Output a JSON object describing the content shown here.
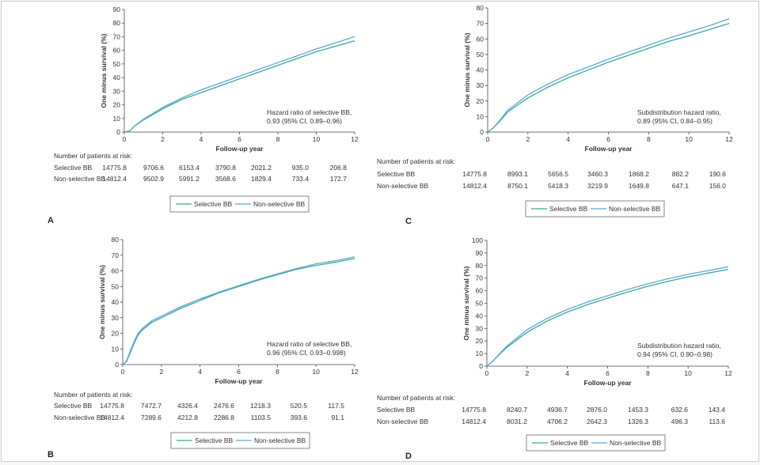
{
  "colors": {
    "selective": "#3aa79b",
    "non_selective": "#5aa9d6",
    "axis": "#444444",
    "text": "#333333"
  },
  "chart_data": [
    {
      "panel_label": "A",
      "type": "line",
      "xlabel": "Follow-up year",
      "ylabel": "One minus survival (%)",
      "xlim": [
        0,
        12
      ],
      "ylim": [
        0,
        90
      ],
      "xticks": [
        0,
        2,
        4,
        6,
        8,
        10,
        12
      ],
      "yticks": [
        0,
        10,
        20,
        30,
        40,
        50,
        60,
        70,
        80,
        90
      ],
      "annotation": [
        "Hazard ratio of selective BB,",
        "0.93 (95% CI, 0.89–0.96)"
      ],
      "series": [
        {
          "name": "Selective BB",
          "x": [
            0,
            0.3,
            0.5,
            1,
            2,
            3,
            4,
            5,
            6,
            7,
            8,
            9,
            10,
            11,
            12
          ],
          "y": [
            0,
            1,
            4,
            9,
            17,
            24,
            29,
            34,
            39,
            44,
            49,
            54,
            59,
            63,
            67
          ]
        },
        {
          "name": "Non-selective BB",
          "x": [
            0,
            0.3,
            0.5,
            1,
            2,
            3,
            4,
            5,
            6,
            7,
            8,
            9,
            10,
            11,
            12
          ],
          "y": [
            0,
            1,
            4,
            9.5,
            18,
            25,
            31,
            36,
            41,
            46,
            51,
            56,
            61,
            65.5,
            70
          ]
        }
      ],
      "risk_table": {
        "title": "Number of patients at risk:",
        "rows": [
          {
            "label": "Selective BB",
            "values": [
              "14775.8",
              "9706.6",
              "6153.4",
              "3790.8",
              "2021.2",
              "935.0",
              "206.8"
            ]
          },
          {
            "label": "Non-selective BB",
            "values": [
              "14812.4",
              "9502.9",
              "5991.2",
              "3568.6",
              "1829.4",
              "733.4",
              "172.7"
            ]
          }
        ]
      },
      "legend": [
        "Selective BB",
        "Non-selective BB"
      ]
    },
    {
      "panel_label": "B",
      "type": "line",
      "xlabel": "Follow-up year",
      "ylabel": "One minus survival (%)",
      "xlim": [
        0,
        12
      ],
      "ylim": [
        0,
        80
      ],
      "xticks": [
        0,
        2,
        4,
        6,
        8,
        10,
        12
      ],
      "yticks": [
        0,
        10,
        20,
        30,
        40,
        50,
        60,
        70,
        80
      ],
      "annotation": [
        "Hazard ratio of selective BB,",
        "0.96 (95% CI, 0.93–0.998)"
      ],
      "series": [
        {
          "name": "Selective BB",
          "x": [
            0,
            0.1,
            0.2,
            0.4,
            0.6,
            0.8,
            1,
            1.5,
            2,
            3,
            4,
            5,
            6,
            7,
            8,
            9,
            10,
            11,
            12
          ],
          "y": [
            0,
            1,
            2,
            8,
            14,
            19,
            22,
            27,
            30,
            36,
            41,
            46,
            50,
            54,
            57.5,
            61,
            63.5,
            65.5,
            68
          ]
        },
        {
          "name": "Non-selective BB",
          "x": [
            0,
            0.1,
            0.2,
            0.4,
            0.6,
            0.8,
            1,
            1.5,
            2,
            3,
            4,
            5,
            6,
            7,
            8,
            9,
            10,
            11,
            12
          ],
          "y": [
            0,
            1,
            2.5,
            9,
            15,
            20,
            23,
            28,
            31,
            37,
            42,
            46.5,
            50.5,
            54.5,
            58,
            61.5,
            64.5,
            66.5,
            69
          ]
        }
      ],
      "risk_table": {
        "title": "Number of patients at risk:",
        "rows": [
          {
            "label": "Selective BB",
            "values": [
              "14775.8",
              "7472.7",
              "4326.4",
              "2476.6",
              "1218.3",
              "520.5",
              "117.5"
            ]
          },
          {
            "label": "Non-selective BB",
            "values": [
              "14812.4",
              "7289.6",
              "4212.8",
              "2286.8",
              "1103.5",
              "393.6",
              "91.1"
            ]
          }
        ]
      },
      "legend": [
        "Selective BB",
        "Non-selective BB"
      ]
    },
    {
      "panel_label": "C",
      "type": "line",
      "xlabel": "Follow-up year",
      "ylabel": "One minus survival (%)",
      "xlim": [
        0,
        12
      ],
      "ylim": [
        0,
        80
      ],
      "xticks": [
        0,
        2,
        4,
        6,
        8,
        10,
        12
      ],
      "yticks": [
        0,
        10,
        20,
        30,
        40,
        50,
        60,
        70,
        80
      ],
      "annotation": [
        "Subdistribution hazard ratio,",
        "0.89 (95% CI, 0.84–0.95)"
      ],
      "series": [
        {
          "name": "Selective BB",
          "x": [
            0,
            0.3,
            0.6,
            1,
            2,
            3,
            4,
            5,
            6,
            7,
            8,
            9,
            10,
            11,
            12
          ],
          "y": [
            0,
            3,
            7,
            13,
            22,
            29,
            35,
            40,
            45,
            49.5,
            54,
            58.5,
            62,
            66,
            70
          ]
        },
        {
          "name": "Non-selective BB",
          "x": [
            0,
            0.3,
            0.6,
            1,
            2,
            3,
            4,
            5,
            6,
            7,
            8,
            9,
            10,
            11,
            12
          ],
          "y": [
            0,
            3,
            7.5,
            14,
            24,
            31,
            37,
            42,
            47,
            51.5,
            56,
            60.5,
            64.5,
            68.5,
            73
          ]
        }
      ],
      "risk_table": {
        "title": "Number of patients at risk:",
        "rows": [
          {
            "label": "Selective BB",
            "values": [
              "14775.8",
              "8993.1",
              "5656.5",
              "3460.3",
              "1868.2",
              "882.2",
              "190.6"
            ]
          },
          {
            "label": "Non-selective BB",
            "values": [
              "14812.4",
              "8750.1",
              "5418.3",
              "3219.9",
              "1649.8",
              "647.1",
              "156.0"
            ]
          }
        ]
      },
      "legend": [
        "Selective BB",
        "Non-selective BB"
      ]
    },
    {
      "panel_label": "D",
      "type": "line",
      "xlabel": "Follow-up year",
      "ylabel": "One minus survival (%)",
      "xlim": [
        0,
        12
      ],
      "ylim": [
        0,
        100
      ],
      "xticks": [
        0,
        2,
        4,
        6,
        8,
        10,
        12
      ],
      "yticks": [
        0,
        10,
        20,
        30,
        40,
        50,
        60,
        70,
        80,
        90,
        100
      ],
      "annotation": [
        "Subdistribution hazard ratio,",
        "0.94 (95% CI, 0.90–0.98)"
      ],
      "series": [
        {
          "name": "Selective BB",
          "x": [
            0,
            0.3,
            0.6,
            1,
            2,
            3,
            4,
            5,
            6,
            7,
            8,
            9,
            10,
            11,
            12
          ],
          "y": [
            0,
            4,
            9,
            15,
            27,
            36,
            43,
            49,
            54,
            59,
            63.5,
            67.5,
            71,
            74,
            77
          ]
        },
        {
          "name": "Non-selective BB",
          "x": [
            0,
            0.3,
            0.6,
            1,
            2,
            3,
            4,
            5,
            6,
            7,
            8,
            9,
            10,
            11,
            12
          ],
          "y": [
            0,
            4,
            9.5,
            16,
            29,
            38,
            45,
            51,
            56,
            61,
            65.5,
            69.5,
            73,
            76,
            79
          ]
        }
      ],
      "risk_table": {
        "title": "Number of patients at risk:",
        "rows": [
          {
            "label": "Selective BB",
            "values": [
              "14775.8",
              "8240.7",
              "4936.7",
              "2876.0",
              "1453.3",
              "632.6",
              "143.4"
            ]
          },
          {
            "label": "Non-selective BB",
            "values": [
              "14812.4",
              "8031.2",
              "4706.2",
              "2642.3",
              "1326.3",
              "496.3",
              "113.6"
            ]
          }
        ]
      },
      "legend": [
        "Selective BB",
        "Non-selective BB"
      ]
    }
  ]
}
